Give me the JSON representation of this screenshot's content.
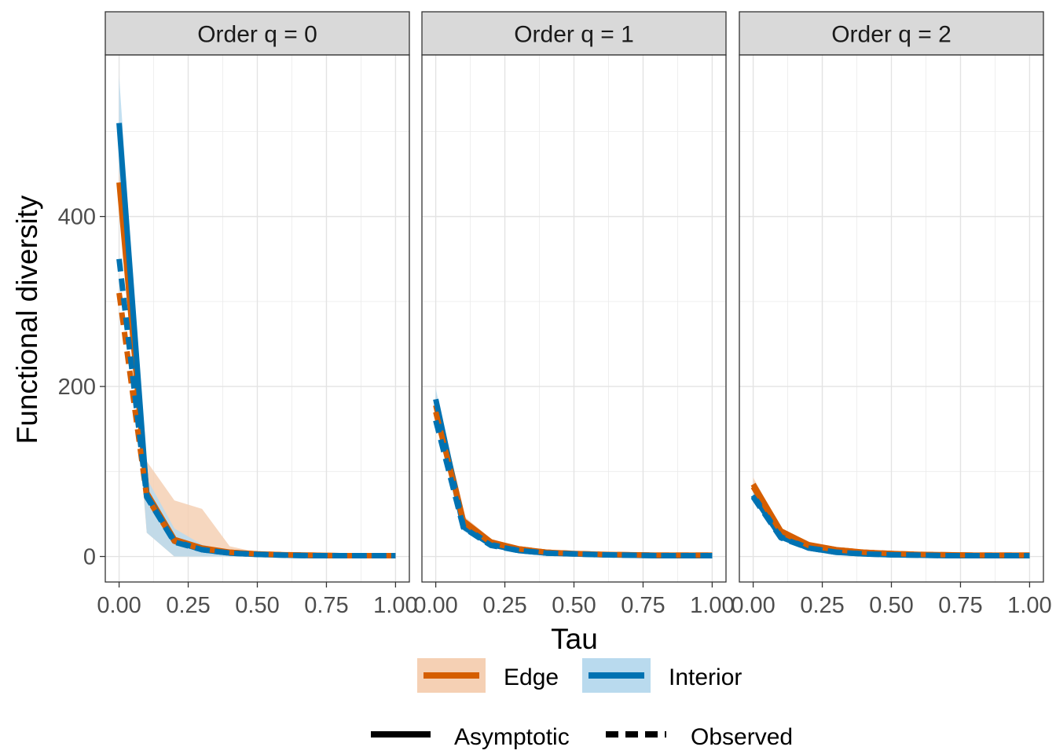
{
  "chart_data": {
    "type": "line",
    "xlabel": "Tau",
    "ylabel": "Functional diversity",
    "xlim": [
      -0.05,
      1.05
    ],
    "ylim": [
      -30,
      590
    ],
    "x_ticks": [
      0,
      0.25,
      0.5,
      0.75,
      1
    ],
    "x_tick_labels": [
      "0.00",
      "0.25",
      "0.50",
      "0.75",
      "1.00"
    ],
    "y_ticks": [
      0,
      200,
      400
    ],
    "y_tick_labels": [
      "0",
      "200",
      "400"
    ],
    "grid": true,
    "legend_position": "bottom",
    "legend": {
      "colour": [
        {
          "label": "Edge",
          "color": "#D55E00",
          "fill": "#F5D0B4"
        },
        {
          "label": "Interior",
          "color": "#0072B2",
          "fill": "#B9DAEE"
        }
      ],
      "linetype": [
        {
          "label": "Asymptotic",
          "dash": "solid"
        },
        {
          "label": "Observed",
          "dash": "dashed"
        }
      ]
    },
    "panels": [
      {
        "title": "Order q = 0",
        "series": [
          {
            "name": "Edge",
            "method": "Asymptotic",
            "x": [
              0,
              0.1,
              0.2,
              0.3,
              0.4,
              0.5,
              0.6,
              0.7,
              0.8,
              0.9,
              1.0
            ],
            "y": [
              440,
              75,
              20,
              10,
              5,
              3,
              2,
              1.5,
              1,
              1,
              1
            ],
            "lower": [
              410,
              28,
              0,
              0,
              0,
              0,
              0,
              0,
              0,
              0,
              0
            ],
            "upper": [
              470,
              112,
              66,
              56,
              12,
              5,
              3,
              2,
              1.5,
              1.5,
              1.5
            ]
          },
          {
            "name": "Interior",
            "method": "Asymptotic",
            "x": [
              0,
              0.1,
              0.2,
              0.3,
              0.4,
              0.5,
              0.6,
              0.7,
              0.8,
              0.9,
              1.0
            ],
            "y": [
              510,
              72,
              18,
              8,
              4,
              2.5,
              1.5,
              1,
              1,
              1,
              1
            ],
            "lower": [
              455,
              28,
              0,
              0,
              0,
              0,
              0,
              0,
              0,
              0,
              0
            ],
            "upper": [
              565,
              92,
              33,
              14,
              6,
              3.5,
              2,
              1.5,
              1.5,
              1.5,
              1.5
            ]
          },
          {
            "name": "Edge",
            "method": "Observed",
            "x": [
              0,
              0.1,
              0.2,
              0.3,
              0.4,
              0.5,
              0.6,
              0.7,
              0.8,
              0.9,
              1.0
            ],
            "y": [
              310,
              70,
              18,
              9,
              5,
              3,
              2,
              1.5,
              1,
              1,
              1
            ]
          },
          {
            "name": "Interior",
            "method": "Observed",
            "x": [
              0,
              0.1,
              0.2,
              0.3,
              0.4,
              0.5,
              0.6,
              0.7,
              0.8,
              0.9,
              1.0
            ],
            "y": [
              350,
              70,
              17,
              8,
              4,
              2.5,
              1.5,
              1,
              1,
              1,
              1
            ]
          }
        ]
      },
      {
        "title": "Order q = 1",
        "series": [
          {
            "name": "Edge",
            "method": "Asymptotic",
            "x": [
              0,
              0.1,
              0.2,
              0.3,
              0.4,
              0.5,
              0.6,
              0.7,
              0.8,
              0.9,
              1.0
            ],
            "y": [
              178,
              42,
              17,
              9,
              5,
              3.5,
              2.5,
              2,
              1.5,
              1.5,
              1.5
            ],
            "lower": [
              165,
              36,
              13,
              7,
              4,
              2.5,
              2,
              1.5,
              1,
              1,
              1
            ],
            "upper": [
              192,
              48,
              21,
              11,
              6,
              4.5,
              3,
              2.5,
              2,
              2,
              2
            ]
          },
          {
            "name": "Interior",
            "method": "Asymptotic",
            "x": [
              0,
              0.1,
              0.2,
              0.3,
              0.4,
              0.5,
              0.6,
              0.7,
              0.8,
              0.9,
              1.0
            ],
            "y": [
              185,
              35,
              14,
              7,
              4,
              3,
              2,
              1.5,
              1,
              1,
              1
            ],
            "lower": [
              172,
              30,
              11,
              5,
              3,
              2,
              1.5,
              1,
              0.5,
              0.5,
              0.5
            ],
            "upper": [
              198,
              40,
              17,
              9,
              5,
              4,
              2.5,
              2,
              1.5,
              1.5,
              1.5
            ]
          },
          {
            "name": "Edge",
            "method": "Observed",
            "x": [
              0,
              0.1,
              0.2,
              0.3,
              0.4,
              0.5,
              0.6,
              0.7,
              0.8,
              0.9,
              1.0
            ],
            "y": [
              170,
              41,
              16,
              9,
              5,
              3.5,
              2.5,
              2,
              1.5,
              1.5,
              1.5
            ]
          },
          {
            "name": "Interior",
            "method": "Observed",
            "x": [
              0,
              0.1,
              0.2,
              0.3,
              0.4,
              0.5,
              0.6,
              0.7,
              0.8,
              0.9,
              1.0
            ],
            "y": [
              160,
              34,
              13,
              7,
              4,
              3,
              2,
              1.5,
              1,
              1,
              1
            ]
          }
        ]
      },
      {
        "title": "Order q = 2",
        "series": [
          {
            "name": "Edge",
            "method": "Asymptotic",
            "x": [
              0,
              0.1,
              0.2,
              0.3,
              0.4,
              0.5,
              0.6,
              0.7,
              0.8,
              0.9,
              1.0
            ],
            "y": [
              85,
              30,
              14,
              8,
              5,
              3.5,
              2.5,
              2,
              1.5,
              1.5,
              1.5
            ],
            "lower": [
              78,
              26,
              11,
              6,
              4,
              2.5,
              2,
              1.5,
              1,
              1,
              1
            ],
            "upper": [
              93,
              34,
              17,
              10,
              6,
              4.5,
              3,
              2.5,
              2,
              2,
              2
            ]
          },
          {
            "name": "Interior",
            "method": "Asymptotic",
            "x": [
              0,
              0.1,
              0.2,
              0.3,
              0.4,
              0.5,
              0.6,
              0.7,
              0.8,
              0.9,
              1.0
            ],
            "y": [
              72,
              23,
              10,
              5,
              3,
              2,
              1.5,
              1,
              1,
              1,
              1
            ],
            "lower": [
              66,
              20,
              8,
              4,
              2,
              1.5,
              1,
              0.5,
              0.5,
              0.5,
              0.5
            ],
            "upper": [
              78,
              26,
              12,
              6,
              4,
              2.5,
              2,
              1.5,
              1.5,
              1.5,
              1.5
            ]
          },
          {
            "name": "Edge",
            "method": "Observed",
            "x": [
              0,
              0.1,
              0.2,
              0.3,
              0.4,
              0.5,
              0.6,
              0.7,
              0.8,
              0.9,
              1.0
            ],
            "y": [
              82,
              29,
              13,
              8,
              5,
              3.5,
              2.5,
              2,
              1.5,
              1.5,
              1.5
            ]
          },
          {
            "name": "Interior",
            "method": "Observed",
            "x": [
              0,
              0.1,
              0.2,
              0.3,
              0.4,
              0.5,
              0.6,
              0.7,
              0.8,
              0.9,
              1.0
            ],
            "y": [
              70,
              22,
              10,
              5,
              3,
              2,
              1.5,
              1,
              1,
              1,
              1
            ]
          }
        ]
      }
    ]
  }
}
